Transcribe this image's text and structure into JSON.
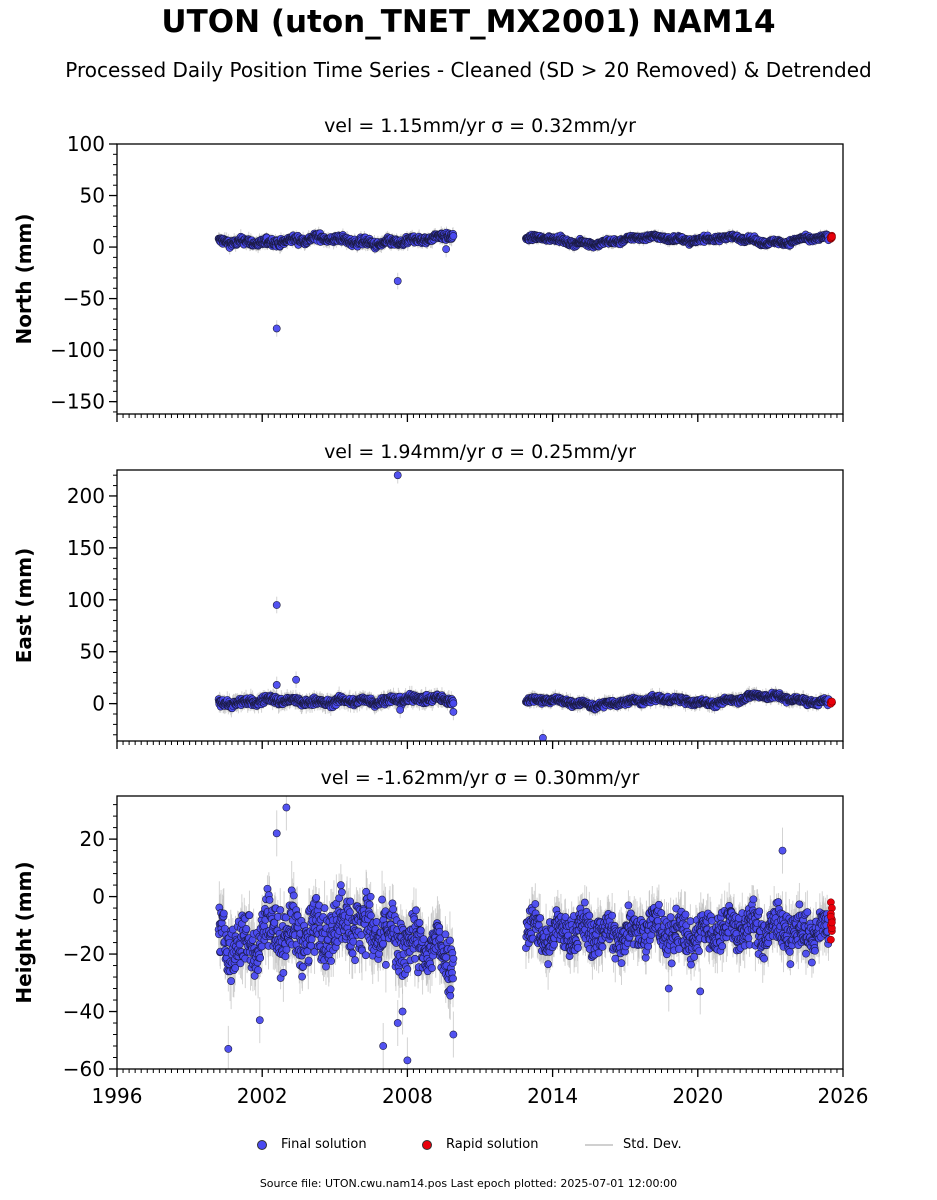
{
  "title": "UTON (uton_TNET_MX2001) NAM14",
  "subtitle": "Processed Daily Position Time Series - Cleaned (SD > 20 Removed) & Detrended",
  "legend": {
    "final": "Final solution",
    "rapid": "Rapid solution",
    "std": "Std. Dev."
  },
  "footer": "Source file: UTON.cwu.nam14.pos  Last epoch plotted: 2025-07-01 12:00:00",
  "colors": {
    "final": "#4a4af0",
    "rapid": "#e8000b",
    "std": "#c0c0c0",
    "edge": "#1a1a40"
  },
  "chart_data": [
    {
      "type": "scatter",
      "title": "vel = 1.15mm/yr   σ = 0.32mm/yr",
      "ylabel": "North (mm)",
      "xlabel": "",
      "xlim": [
        1996,
        2026
      ],
      "ylim": [
        -162,
        100
      ],
      "yticks": [
        100,
        50,
        0,
        -50,
        -100,
        -150
      ],
      "xticks": [
        1996,
        2002,
        2008,
        2014,
        2020,
        2026
      ],
      "show_xticklabels": false,
      "segments": [
        {
          "start": 2000.2,
          "end": 2009.9,
          "center": [
            5,
            5,
            4,
            7,
            9,
            6,
            3,
            5,
            8,
            12
          ],
          "spread": 2.5,
          "sd": 5
        },
        {
          "start": 2012.9,
          "end": 2025.4,
          "center": [
            8,
            9,
            4,
            3,
            6,
            10,
            9,
            6,
            8,
            10,
            5,
            4,
            8,
            9
          ],
          "spread": 1.8,
          "sd": 4
        }
      ],
      "outliers": [
        [
          2002.6,
          -79
        ],
        [
          2007.6,
          -33
        ],
        [
          2009.6,
          -2
        ]
      ],
      "rapid": {
        "x": 2025.5,
        "values": [
          8,
          9,
          10,
          11,
          9,
          10
        ]
      }
    },
    {
      "type": "scatter",
      "title": "vel = 1.94mm/yr   σ = 0.25mm/yr",
      "ylabel": "East (mm)",
      "xlabel": "",
      "xlim": [
        1996,
        2026
      ],
      "ylim": [
        -36,
        225
      ],
      "yticks": [
        200,
        150,
        100,
        50,
        0
      ],
      "xticks": [
        1996,
        2002,
        2008,
        2014,
        2020,
        2026
      ],
      "show_xticklabels": false,
      "segments": [
        {
          "start": 2000.2,
          "end": 2009.9,
          "center": [
            0,
            1,
            4,
            2,
            1,
            3,
            2,
            4,
            5,
            3
          ],
          "spread": 2.5,
          "sd": 6
        },
        {
          "start": 2012.9,
          "end": 2025.4,
          "center": [
            3,
            4,
            1,
            -2,
            1,
            3,
            5,
            2,
            0,
            4,
            8,
            6,
            2,
            1
          ],
          "spread": 2.0,
          "sd": 5
        }
      ],
      "outliers": [
        [
          2002.6,
          95
        ],
        [
          2002.6,
          18
        ],
        [
          2003.4,
          23
        ],
        [
          2007.6,
          220
        ],
        [
          2013.6,
          -33
        ],
        [
          2009.9,
          -8
        ],
        [
          2007.7,
          -6
        ]
      ],
      "rapid": {
        "x": 2025.5,
        "values": [
          0,
          1,
          2,
          1,
          0,
          2
        ]
      }
    },
    {
      "type": "scatter",
      "title": "vel = -1.62mm/yr   σ = 0.30mm/yr",
      "ylabel": "Height (mm)",
      "xlabel": "",
      "xlim": [
        1996,
        2026
      ],
      "ylim": [
        -60,
        35
      ],
      "yticks": [
        20,
        0,
        -20,
        -40,
        -60
      ],
      "xticks": [
        1996,
        2002,
        2008,
        2014,
        2020,
        2026
      ],
      "show_xticklabels": true,
      "segments": [
        {
          "start": 2000.2,
          "end": 2009.9,
          "center": [
            -15,
            -18,
            -10,
            -14,
            -12,
            -8,
            -12,
            -16,
            -18,
            -20
          ],
          "spread": 7,
          "sd": 7
        },
        {
          "start": 2012.9,
          "end": 2025.4,
          "center": [
            -10,
            -14,
            -12,
            -12,
            -14,
            -10,
            -12,
            -14,
            -12,
            -10,
            -12,
            -11,
            -13,
            -12
          ],
          "spread": 5,
          "sd": 6
        }
      ],
      "outliers": [
        [
          2000.6,
          -53
        ],
        [
          2001.9,
          -43
        ],
        [
          2003.0,
          31
        ],
        [
          2002.6,
          22
        ],
        [
          2007.0,
          -52
        ],
        [
          2008.0,
          -57
        ],
        [
          2009.9,
          -48
        ],
        [
          2007.8,
          -40
        ],
        [
          2020.1,
          -33
        ],
        [
          2023.5,
          16
        ],
        [
          2007.6,
          -44
        ],
        [
          2018.8,
          -32
        ]
      ],
      "rapid": {
        "x": 2025.5,
        "values": [
          -2,
          -4,
          -6,
          -8,
          -10,
          -12,
          -15,
          -11,
          -7,
          -9
        ]
      }
    }
  ]
}
